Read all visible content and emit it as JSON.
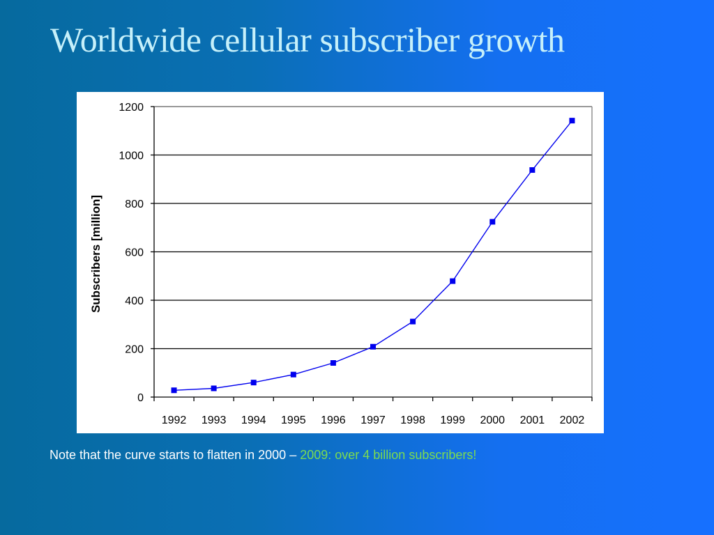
{
  "slide": {
    "title": "Worldwide cellular subscriber growth",
    "note_prefix": "Note that the curve starts to flatten in 2000 – ",
    "note_highlight": "2009: over 4 billion subscribers!"
  },
  "colors": {
    "title": "#c6f0fa",
    "highlight": "#7cdc50",
    "series": "#0000ee",
    "gridline": "#000000"
  },
  "chart_data": {
    "type": "line",
    "title": "",
    "xlabel": "",
    "ylabel": "Subscribers [million]",
    "categories": [
      "1992",
      "1993",
      "1994",
      "1995",
      "1996",
      "1997",
      "1998",
      "1999",
      "2000",
      "2001",
      "2002"
    ],
    "series": [
      {
        "values": [
          28,
          36,
          60,
          93,
          141,
          208,
          312,
          479,
          724,
          938,
          1142
        ]
      }
    ],
    "ylim": [
      0,
      1200
    ],
    "yticks": [
      0,
      200,
      400,
      600,
      800,
      1000,
      1200
    ],
    "grid": "horizontal",
    "legend": "none",
    "marker": "square"
  }
}
